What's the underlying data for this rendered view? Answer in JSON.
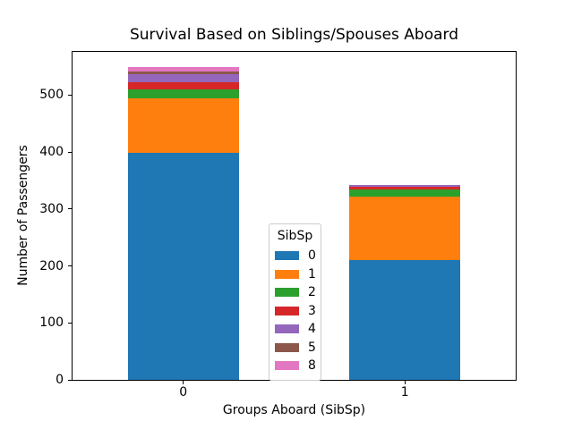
{
  "chart_data": {
    "type": "bar",
    "stacked": true,
    "title": "Survival Based on Siblings/Spouses Aboard",
    "xlabel": "Groups Aboard (SibSp)",
    "ylabel": "Number of Passengers",
    "categories": [
      "0",
      "1"
    ],
    "series": [
      {
        "name": "0",
        "color": "#1f77b4",
        "values": [
          398,
          210
        ]
      },
      {
        "name": "1",
        "color": "#ff7f0e",
        "values": [
          97,
          112
        ]
      },
      {
        "name": "2",
        "color": "#2ca02c",
        "values": [
          15,
          13
        ]
      },
      {
        "name": "3",
        "color": "#d62728",
        "values": [
          12,
          4
        ]
      },
      {
        "name": "4",
        "color": "#9467bd",
        "values": [
          15,
          3
        ]
      },
      {
        "name": "5",
        "color": "#8c564b",
        "values": [
          5,
          0
        ]
      },
      {
        "name": "8",
        "color": "#e377c2",
        "values": [
          7,
          0
        ]
      }
    ],
    "totals": [
      549,
      342
    ],
    "ylim": [
      0,
      576
    ],
    "yticks": [
      0,
      100,
      200,
      300,
      400,
      500
    ],
    "grid": false,
    "legend": {
      "title": "SibSp",
      "entries": [
        "0",
        "1",
        "2",
        "3",
        "4",
        "5",
        "8"
      ],
      "position": "center"
    }
  }
}
